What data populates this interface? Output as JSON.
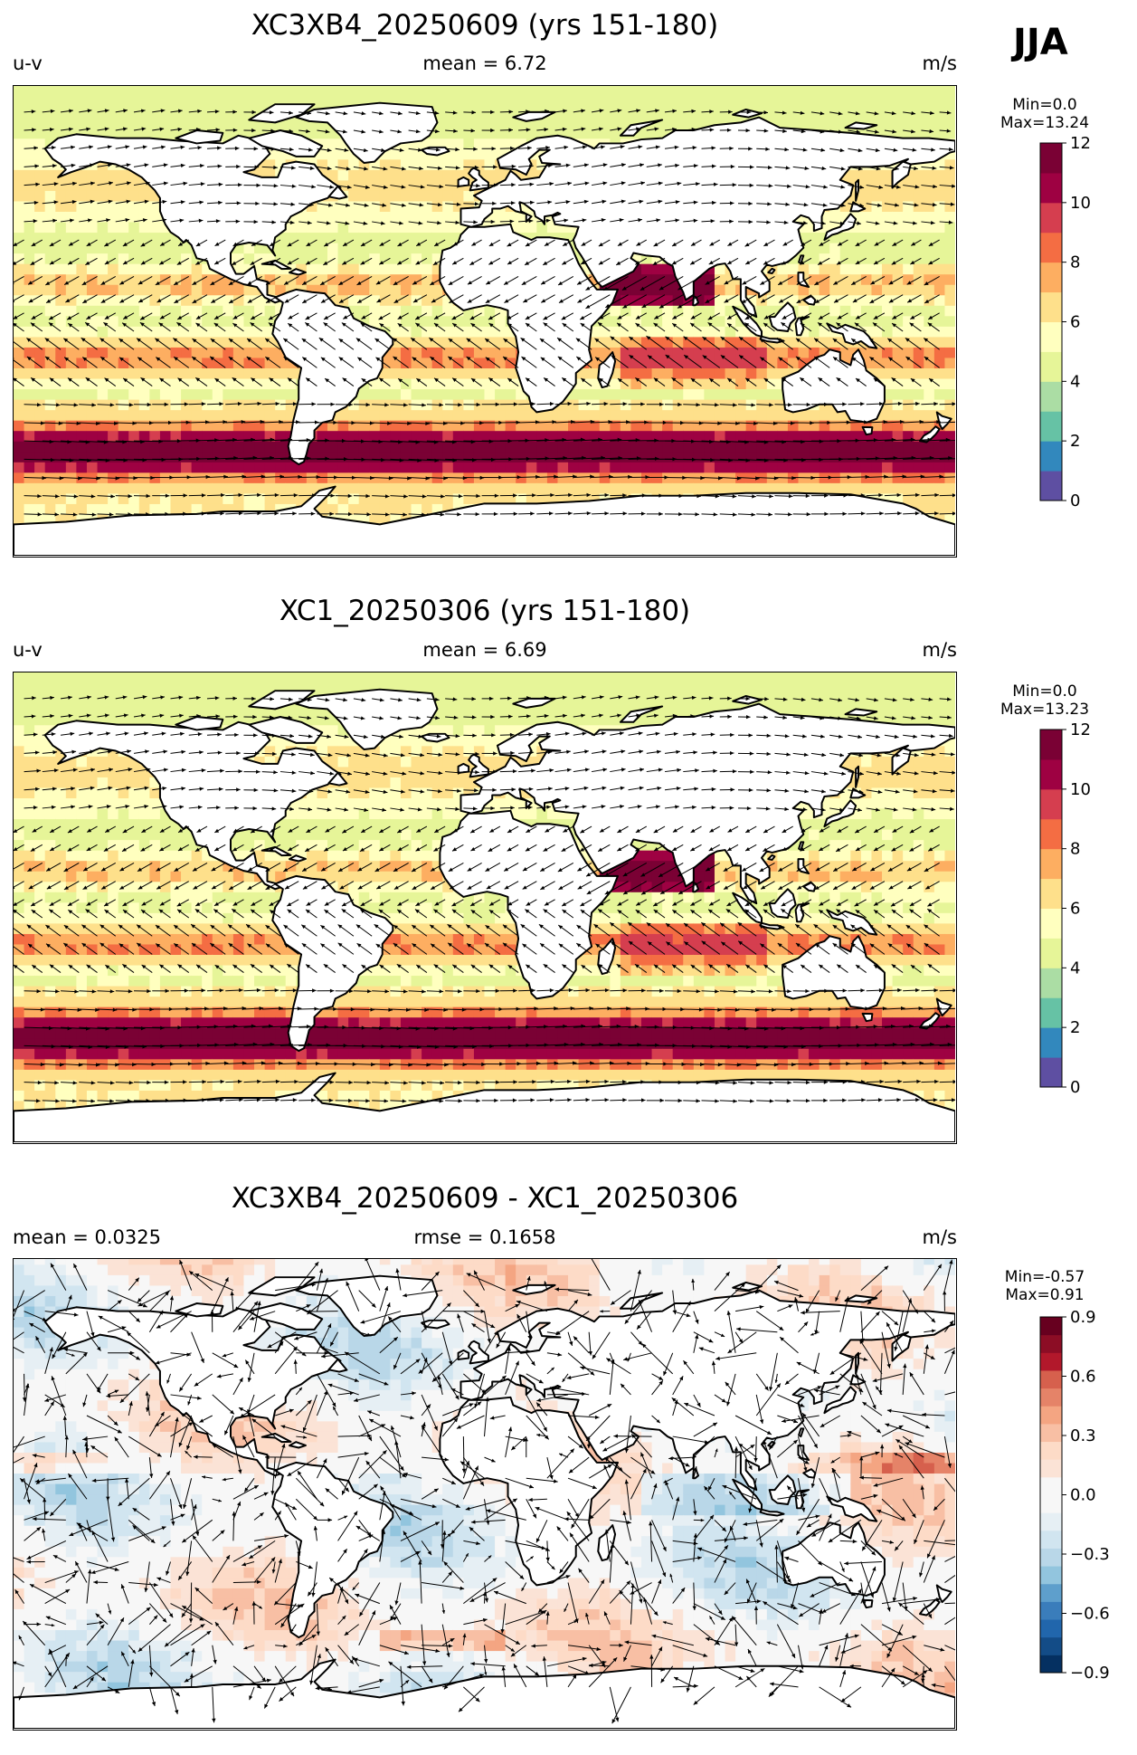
{
  "season": "JJA",
  "panels": [
    {
      "title": "XC3XB4_20250609 (yrs 151-180)",
      "left": "u-v",
      "center": "mean = 6.72",
      "right": "m/s",
      "range_label": "Min=0.0\nMax=13.24",
      "colorbar": {
        "ticks": [
          "0",
          "2",
          "4",
          "6",
          "8",
          "10",
          "12"
        ],
        "colors": [
          "#5e4fa2",
          "#3288bd",
          "#66c2a5",
          "#abdda4",
          "#e6f598",
          "#ffffbf",
          "#fee08b",
          "#fdae61",
          "#f46d43",
          "#d53e4f",
          "#9e0142",
          "#7a0134"
        ]
      }
    },
    {
      "title": "XC1_20250306 (yrs 151-180)",
      "left": "u-v",
      "center": "mean = 6.69",
      "right": "m/s",
      "range_label": "Min=0.0\nMax=13.23",
      "colorbar": {
        "ticks": [
          "0",
          "2",
          "4",
          "6",
          "8",
          "10",
          "12"
        ],
        "colors": [
          "#5e4fa2",
          "#3288bd",
          "#66c2a5",
          "#abdda4",
          "#e6f598",
          "#ffffbf",
          "#fee08b",
          "#fdae61",
          "#f46d43",
          "#d53e4f",
          "#9e0142",
          "#7a0134"
        ]
      }
    },
    {
      "title": "XC3XB4_20250609 - XC1_20250306",
      "left": "mean = 0.0325",
      "center": "rmse = 0.1658",
      "right": "m/s",
      "range_label": "Min=-0.57\nMax=0.91",
      "colorbar": {
        "ticks": [
          "−0.9",
          "−0.6",
          "−0.3",
          "0.0",
          "0.3",
          "0.6",
          "0.9"
        ],
        "colors": [
          "#053061",
          "#134c87",
          "#2166ac",
          "#3a7dbb",
          "#5e9fcc",
          "#92c5de",
          "#b9d7e8",
          "#d1e5f0",
          "#e6eff4",
          "#f7f7f7",
          "#f7f7f7",
          "#fbe3d6",
          "#fddbc7",
          "#f8bfa4",
          "#f4a582",
          "#e58368",
          "#d6604d",
          "#b2182b",
          "#8c0d25",
          "#67001f"
        ]
      }
    }
  ]
}
